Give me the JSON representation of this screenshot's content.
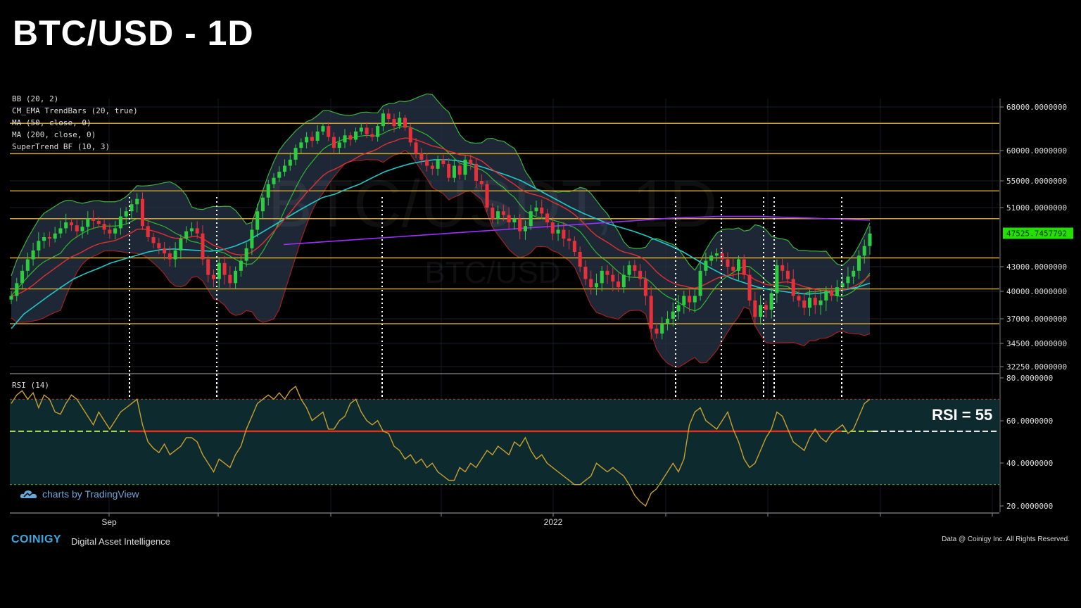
{
  "title": "BTC/USD - 1D",
  "indicators": [
    "BB (20, 2)",
    "CM_EMA TrendBars (20, true)",
    "MA (50, close, 0)",
    "MA (200, close, 0)",
    "SuperTrend BF (10, 3)"
  ],
  "watermark": "BTC/USDT, 1D",
  "watermark_sub": "BTC/USD",
  "rsi_label": "RSI (14)",
  "rsi_callout": "RSI = 55",
  "tradingview_badge": "charts by TradingView",
  "footer": {
    "brand": "COINIGY",
    "tagline": "Digital Asset Intelligence",
    "copyright": "Data @ Coinigy Inc.  All Rights Reserved."
  },
  "colors": {
    "up": "#2ecc40",
    "down": "#e8303a",
    "level": "#c8a030",
    "ma50": "#1fc8c8",
    "ma200": "#9b30ff",
    "ema20": "#e03030",
    "bb": "#3bb33b",
    "rsi": "#c8a030",
    "price_tag": "#22e000"
  },
  "chart_data": {
    "type": "candlestick",
    "price_axis_ticks": [
      "68000.0000000",
      "60000.0000000",
      "55000.0000000",
      "51000.0000000",
      "43000.0000000",
      "40000.0000000",
      "37000.0000000",
      "34500.0000000",
      "32250.0000000"
    ],
    "price_tick_values": [
      68000,
      60000,
      55000,
      51000,
      43000,
      40000,
      37000,
      34500,
      32250
    ],
    "last_price_label": "47525.7457792",
    "last_price": 47525.75,
    "horizontal_levels": [
      65000,
      59500,
      53500,
      49500,
      44200,
      40300,
      36500
    ],
    "x_axis_labels": [
      "Sep",
      "2022"
    ],
    "close_series": [
      39500,
      41000,
      42500,
      44000,
      45200,
      46500,
      47000,
      46800,
      47500,
      48200,
      49000,
      48600,
      47800,
      48400,
      49500,
      49200,
      48800,
      48000,
      47500,
      48200,
      49800,
      50500,
      51500,
      52300,
      48500,
      47000,
      46200,
      45500,
      44800,
      44000,
      45200,
      46800,
      47800,
      48200,
      47500,
      44000,
      42000,
      41500,
      43500,
      42000,
      41000,
      42500,
      43800,
      45500,
      48000,
      50500,
      52500,
      54500,
      55500,
      56500,
      57500,
      58500,
      60500,
      61500,
      62500,
      61800,
      63500,
      64500,
      62500,
      60500,
      61500,
      62800,
      62000,
      63500,
      64200,
      63000,
      62500,
      64500,
      66800,
      65800,
      64500,
      66000,
      64200,
      61500,
      59500,
      58500,
      57500,
      57000,
      58500,
      57800,
      55500,
      57500,
      56000,
      58500,
      57800,
      55000,
      54500,
      51000,
      49500,
      50500,
      50000,
      49000,
      49500,
      47800,
      48500,
      50500,
      51000,
      50200,
      49000,
      47500,
      48000,
      46800,
      46500,
      45000,
      43000,
      41500,
      40500,
      41000,
      42500,
      42000,
      41200,
      40500,
      42000,
      43200,
      42500,
      41500,
      39500,
      36000,
      35500,
      36500,
      37000,
      37800,
      38500,
      39500,
      38800,
      39500,
      42500,
      43800,
      44500,
      44800,
      44000,
      43000,
      42500,
      44000,
      42000,
      39000,
      37200,
      38500,
      38000,
      39800,
      43200,
      42500,
      41500,
      39500,
      39000,
      38200,
      39300,
      38500,
      39000,
      40000,
      39500,
      40500,
      41000,
      41800,
      42500,
      44500,
      45800,
      47500
    ],
    "ma50_series": [
      36000,
      37500,
      38500,
      39500,
      40500,
      41500,
      42200,
      42800,
      43500,
      44000,
      44500,
      45000,
      45300,
      45400,
      45300,
      45200,
      45100,
      45300,
      45800,
      46500,
      47500,
      48500,
      49500,
      50500,
      51500,
      52500,
      53000,
      53800,
      54500,
      55500,
      56500,
      57200,
      57800,
      58200,
      58500,
      58500,
      58300,
      57800,
      57200,
      56500,
      55800,
      55000,
      54000,
      53000,
      52000,
      51000,
      50200,
      49500,
      48800,
      48300,
      47800,
      47200,
      46500,
      45800,
      45000,
      44000,
      43000,
      42200,
      41500,
      41000,
      40500,
      40200,
      40000,
      39800,
      39700,
      39800,
      40000,
      40200,
      40500,
      41000
    ],
    "ma200_series": [
      46000,
      46200,
      46400,
      46600,
      46800,
      47000,
      47200,
      47400,
      47600,
      47800,
      48000,
      48200,
      48400,
      48600,
      48800,
      49000,
      49200,
      49400,
      49600,
      49700,
      49800,
      49800,
      49800,
      49700,
      49600,
      49500,
      49400,
      49300
    ],
    "rsi_axis_ticks": [
      "80.0000000",
      "60.0000000",
      "40.0000000",
      "20.0000000"
    ],
    "rsi_tick_values": [
      80,
      60,
      40,
      20
    ],
    "rsi_band": [
      30,
      70
    ],
    "rsi_threshold": 55,
    "rsi_series": [
      68,
      72,
      74,
      70,
      73,
      66,
      72,
      70,
      64,
      63,
      68,
      72,
      70,
      66,
      62,
      58,
      64,
      60,
      56,
      60,
      64,
      66,
      68,
      70,
      58,
      50,
      47,
      45,
      49,
      44,
      46,
      48,
      52,
      52,
      50,
      44,
      40,
      36,
      42,
      40,
      38,
      44,
      48,
      56,
      62,
      68,
      70,
      72,
      70,
      73,
      70,
      74,
      76,
      70,
      66,
      60,
      62,
      64,
      56,
      56,
      60,
      62,
      68,
      70,
      64,
      60,
      58,
      60,
      55,
      54,
      48,
      46,
      42,
      44,
      40,
      42,
      38,
      40,
      36,
      34,
      32,
      32,
      38,
      36,
      40,
      38,
      42,
      46,
      44,
      48,
      46,
      44,
      50,
      48,
      52,
      46,
      42,
      44,
      40,
      38,
      36,
      34,
      32,
      30,
      30,
      32,
      34,
      40,
      38,
      36,
      38,
      36,
      34,
      30,
      25,
      22,
      20,
      26,
      28,
      32,
      36,
      40,
      36,
      42,
      58,
      64,
      66,
      60,
      58,
      56,
      60,
      64,
      56,
      50,
      42,
      38,
      40,
      46,
      52,
      56,
      64,
      62,
      56,
      50,
      48,
      46,
      52,
      56,
      52,
      50,
      54,
      56,
      58,
      54,
      56,
      62,
      68,
      70
    ]
  }
}
